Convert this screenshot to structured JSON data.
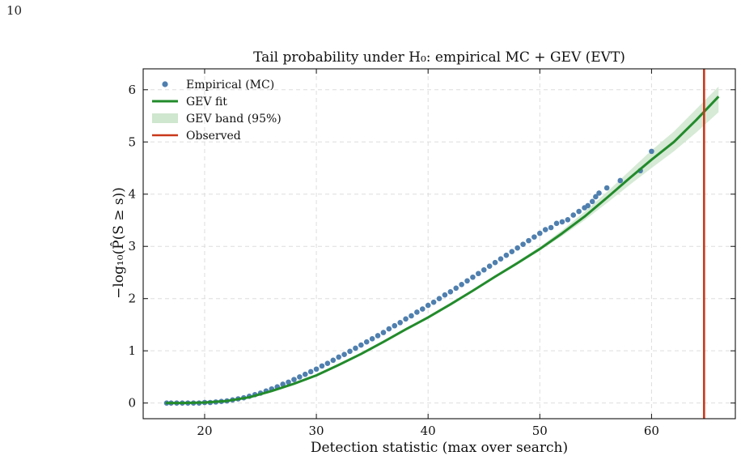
{
  "page": {
    "number": "10"
  },
  "chart_data": {
    "type": "scatter",
    "title": "Tail probability under H₀: empirical MC + GEV (EVT)",
    "xlabel": "Detection statistic (max over search)",
    "ylabel": "−log₁₀(P̂(S ≥ s))",
    "xlim": [
      14.5,
      67.5
    ],
    "ylim": [
      -0.3,
      6.4
    ],
    "xticks": [
      20,
      30,
      40,
      50,
      60
    ],
    "yticks": [
      0,
      1,
      2,
      3,
      4,
      5,
      6
    ],
    "grid": true,
    "legend_position": "top-left",
    "colors": {
      "empirical": "#4f7fae",
      "fit": "#228b2b",
      "band": "#cfe6cf",
      "observed": "#c8391b"
    },
    "legend": [
      {
        "key": "empirical",
        "label": "Empirical (MC)"
      },
      {
        "key": "fit",
        "label": "GEV fit"
      },
      {
        "key": "band",
        "label": "GEV band (95%)"
      },
      {
        "key": "observed",
        "label": "Observed"
      }
    ],
    "series": [
      {
        "name": "Empirical (MC)",
        "kind": "scatter",
        "x": [
          16.6,
          17.0,
          17.5,
          18.0,
          18.5,
          19.0,
          19.5,
          20.0,
          20.5,
          21.0,
          21.5,
          22.0,
          22.5,
          23.0,
          23.5,
          24.0,
          24.5,
          25.0,
          25.5,
          26.0,
          26.5,
          27.0,
          27.5,
          28.0,
          28.5,
          29.0,
          29.5,
          30.0,
          30.5,
          31.0,
          31.5,
          32.0,
          32.5,
          33.0,
          33.5,
          34.0,
          34.5,
          35.0,
          35.5,
          36.0,
          36.5,
          37.0,
          37.5,
          38.0,
          38.5,
          39.0,
          39.5,
          40.0,
          40.5,
          41.0,
          41.5,
          42.0,
          42.5,
          43.0,
          43.5,
          44.0,
          44.5,
          45.0,
          45.5,
          46.0,
          46.5,
          47.0,
          47.5,
          48.0,
          48.5,
          49.0,
          49.5,
          50.0,
          50.5,
          51.0,
          51.5,
          52.0,
          52.5,
          53.0,
          53.5,
          54.0,
          54.3,
          54.7,
          55.0,
          55.3,
          56.0,
          57.2,
          59.0,
          60.0
        ],
        "y": [
          0.0,
          0.0,
          0.0,
          0.0,
          0.0,
          0.0,
          0.0,
          0.01,
          0.01,
          0.02,
          0.03,
          0.04,
          0.06,
          0.08,
          0.1,
          0.13,
          0.16,
          0.19,
          0.23,
          0.27,
          0.31,
          0.36,
          0.4,
          0.45,
          0.5,
          0.55,
          0.6,
          0.65,
          0.71,
          0.76,
          0.82,
          0.88,
          0.93,
          0.99,
          1.05,
          1.11,
          1.17,
          1.23,
          1.29,
          1.35,
          1.42,
          1.48,
          1.54,
          1.61,
          1.67,
          1.74,
          1.8,
          1.87,
          1.93,
          2.0,
          2.07,
          2.13,
          2.2,
          2.27,
          2.34,
          2.41,
          2.48,
          2.55,
          2.62,
          2.69,
          2.76,
          2.83,
          2.9,
          2.97,
          3.04,
          3.11,
          3.18,
          3.25,
          3.32,
          3.36,
          3.44,
          3.47,
          3.51,
          3.6,
          3.67,
          3.74,
          3.78,
          3.86,
          3.95,
          4.02,
          4.12,
          4.26,
          4.45,
          4.82
        ]
      },
      {
        "name": "GEV fit",
        "kind": "line",
        "x": [
          16.5,
          18,
          20,
          22,
          24,
          26,
          28,
          30,
          32,
          34,
          36,
          38,
          40,
          42,
          44,
          46,
          48,
          50,
          52,
          54,
          56,
          58,
          60,
          62,
          64,
          66
        ],
        "y": [
          0.0,
          0.0,
          0.01,
          0.04,
          0.11,
          0.23,
          0.37,
          0.53,
          0.73,
          0.94,
          1.17,
          1.41,
          1.64,
          1.89,
          2.15,
          2.42,
          2.68,
          2.95,
          3.25,
          3.57,
          3.93,
          4.3,
          4.66,
          5.0,
          5.42,
          5.87
        ]
      },
      {
        "name": "GEV band (95%)",
        "kind": "band",
        "x": [
          46,
          50,
          52,
          54,
          56,
          58,
          60,
          62,
          64,
          66
        ],
        "lower": [
          2.4,
          2.92,
          3.2,
          3.5,
          3.83,
          4.17,
          4.5,
          4.82,
          5.18,
          5.57
        ],
        "upper": [
          2.44,
          2.99,
          3.31,
          3.66,
          4.04,
          4.44,
          4.84,
          5.2,
          5.63,
          6.06
        ]
      },
      {
        "name": "Observed",
        "kind": "vline",
        "x": 64.7
      }
    ]
  }
}
